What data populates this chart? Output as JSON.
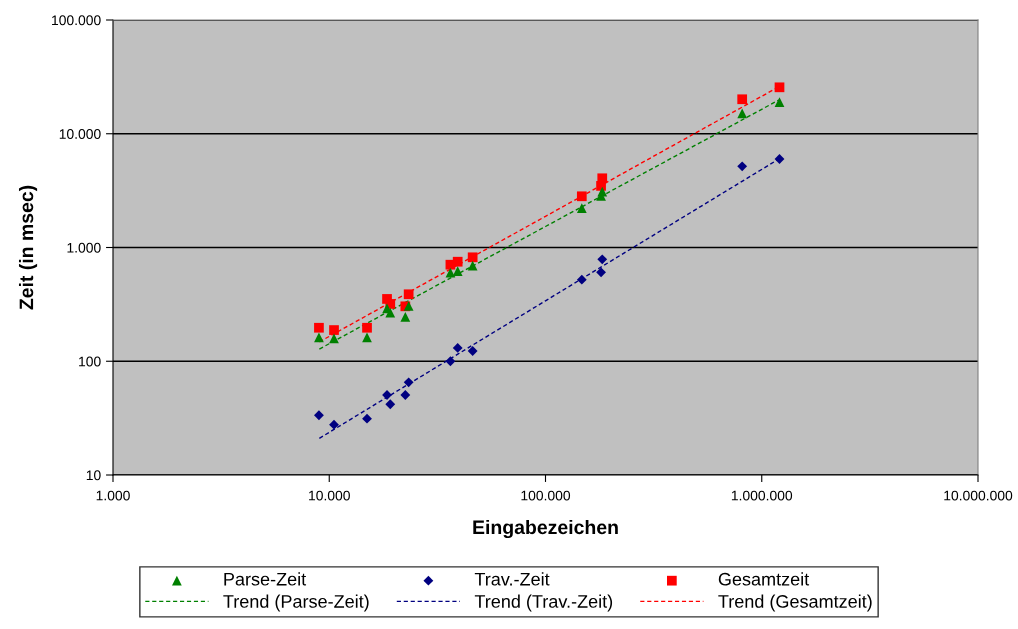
{
  "chart_data": {
    "type": "scatter",
    "xlabel": "Eingabezeichen",
    "ylabel": "Zeit (in msec)",
    "log": "xy",
    "x": [
      8960,
      10520,
      14950,
      18500,
      19150,
      22480,
      23290,
      36330,
      39260,
      46040,
      147200,
      180700,
      183000,
      812000,
      1208000
    ],
    "xlim": [
      1000,
      10000000
    ],
    "xticks": [
      {
        "value": 1000,
        "label": "1.000"
      },
      {
        "value": 10000,
        "label": "10.000"
      },
      {
        "value": 100000,
        "label": "100.000"
      },
      {
        "value": 1000000,
        "label": "1.000.000"
      },
      {
        "value": 10000000,
        "label": "10.000.000"
      }
    ],
    "ylim": [
      10,
      100000
    ],
    "yticks": [
      10,
      100,
      {
        "value": 1000,
        "label": "1.000"
      },
      {
        "value": 10000,
        "label": "10.000"
      },
      {
        "value": 100000,
        "label": "100.000"
      }
    ],
    "grid": "y",
    "legend": "bottom",
    "series": [
      {
        "name": "Parse-Zeit",
        "color": "#008000",
        "marker": "triangle",
        "values": [
          162,
          159,
          162,
          292,
          267,
          245,
          306,
          600,
          621,
          692,
          2220,
          2840,
          3100,
          15100,
          19000
        ]
      },
      {
        "name": "Trav.-Zeit",
        "color": "#000080",
        "marker": "diamond",
        "values": [
          33.5,
          27.7,
          31.3,
          50.5,
          41.9,
          50.5,
          65.3,
          100,
          131,
          123,
          521,
          605,
          787,
          5170,
          6000
        ]
      },
      {
        "name": "Gesamtzeit",
        "color": "#ff0000",
        "marker": "square",
        "values": [
          197,
          188,
          197,
          353,
          319,
          304,
          388,
          706,
          750,
          820,
          2820,
          3480,
          4060,
          20100,
          25600
        ]
      },
      {
        "name": "Trend (Parse-Zeit)",
        "type": "line",
        "line_style": "dashed",
        "color": "#008000",
        "x": [
          9000,
          100000,
          1200000
        ],
        "values": [
          128,
          1530,
          19800
        ]
      },
      {
        "name": "Trend (Trav.-Zeit)",
        "type": "line",
        "line_style": "dashed",
        "color": "#000080",
        "x": [
          9000,
          100000,
          1200000
        ],
        "values": [
          21,
          340,
          6000
        ]
      },
      {
        "name": "Trend (Gesamtzeit)",
        "type": "line",
        "line_style": "dashed",
        "color": "#ff0000",
        "x": [
          9000,
          100000,
          1200000
        ],
        "values": [
          148,
          1880,
          25900
        ]
      }
    ]
  }
}
